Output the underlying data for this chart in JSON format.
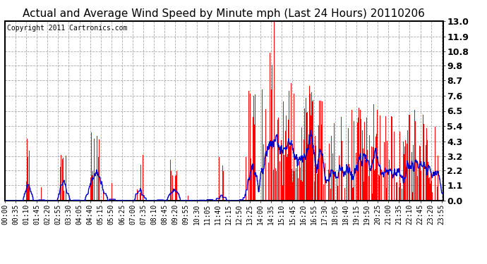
{
  "title": "Actual and Average Wind Speed by Minute mph (Last 24 Hours) 20110206",
  "copyright": "Copyright 2011 Cartronics.com",
  "yticks": [
    0.0,
    1.1,
    2.2,
    3.2,
    4.3,
    5.4,
    6.5,
    7.6,
    8.7,
    9.8,
    10.8,
    11.9,
    13.0
  ],
  "ymax": 13.0,
  "ymin": 0.0,
  "bar_color": "#ff0000",
  "line_color": "#0000cc",
  "bg_color": "#ffffff",
  "grid_color": "#aaaaaa",
  "title_fontsize": 11,
  "copyright_fontsize": 7,
  "tick_fontsize": 7,
  "ytick_fontsize": 9,
  "xlabel_rotation": 90,
  "n_minutes": 1440,
  "seed": 123,
  "x_tick_interval": 35
}
